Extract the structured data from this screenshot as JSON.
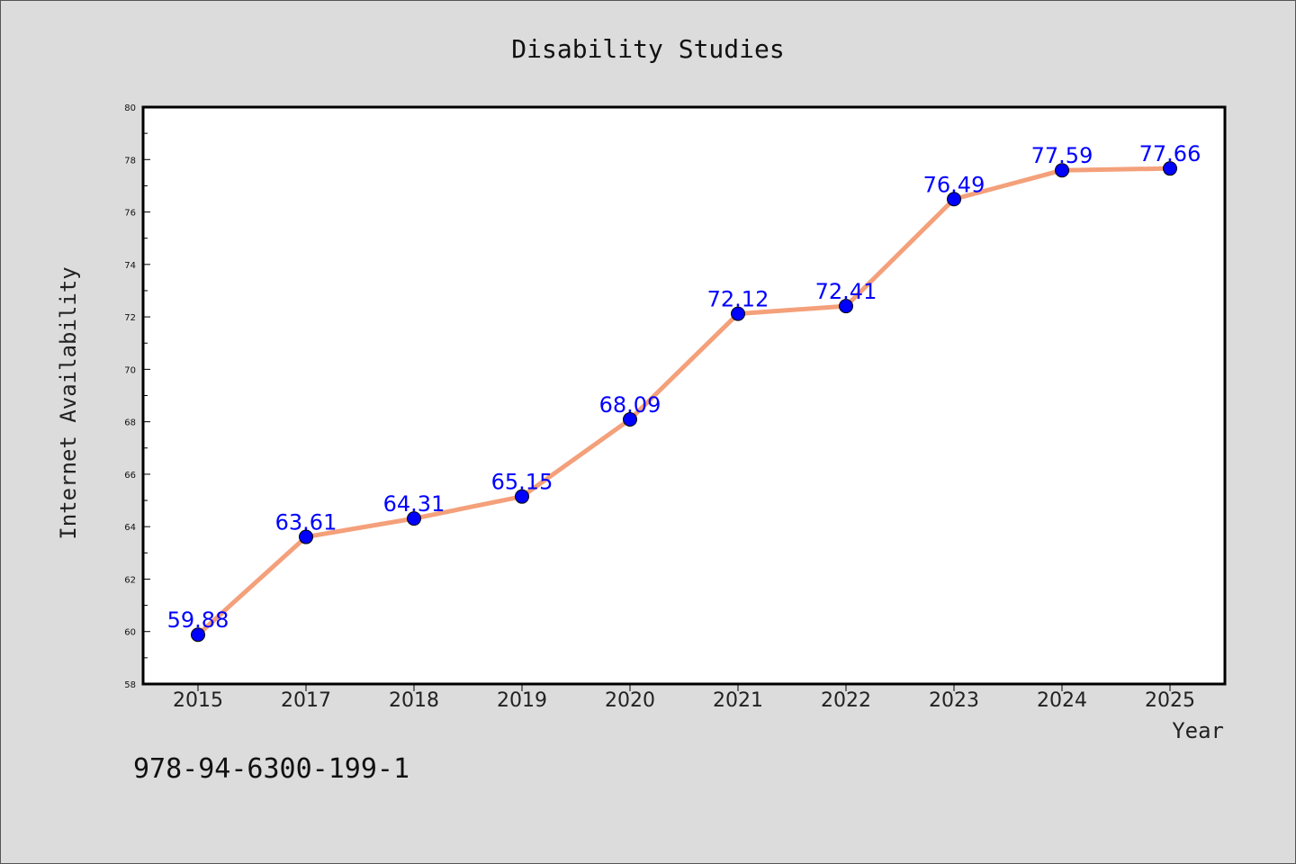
{
  "chart_data": {
    "type": "line",
    "title": "Disability Studies",
    "xlabel": "Year",
    "ylabel": "Internet Availability",
    "categories": [
      "2015",
      "2017",
      "2018",
      "2019",
      "2020",
      "2021",
      "2022",
      "2023",
      "2024",
      "2025"
    ],
    "series": [
      {
        "values": [
          59.88,
          63.61,
          64.31,
          65.15,
          68.09,
          72.12,
          72.41,
          76.49,
          77.59,
          77.66
        ],
        "labels": [
          "59.88",
          "63.61",
          "64.31",
          "65.15",
          "68.09",
          "72.12",
          "72.41",
          "76.49",
          "77.59",
          "77.66"
        ],
        "line_color": "#f4a07a",
        "marker_color": "#0000ff"
      }
    ],
    "ylim": [
      58,
      80
    ],
    "yticks": [
      "58",
      "60",
      "62",
      "64",
      "66",
      "68",
      "70",
      "72",
      "74",
      "76",
      "78",
      "80"
    ],
    "grid": false,
    "legend": "none",
    "data_label_color": "#0000ff"
  },
  "footer": {
    "isbn": "978-94-6300-199-1"
  }
}
